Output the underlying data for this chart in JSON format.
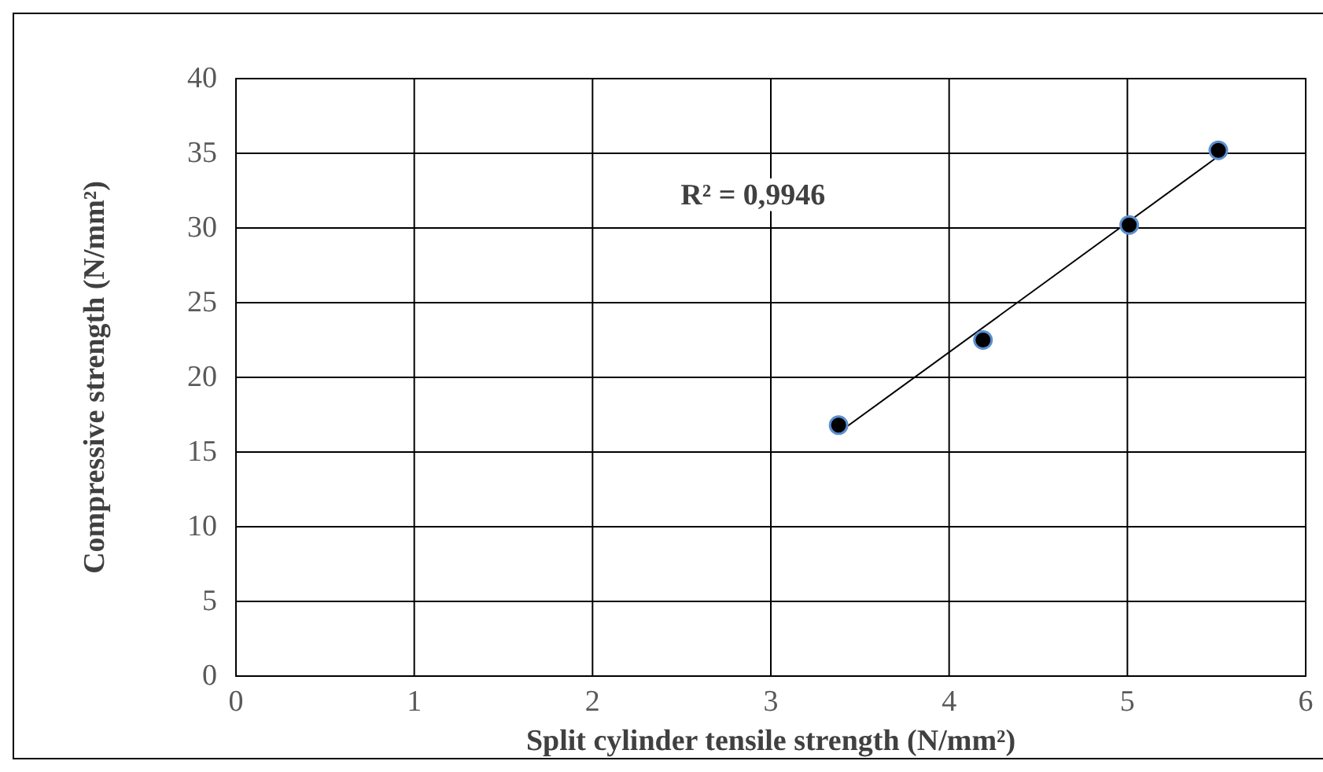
{
  "chart_data": {
    "type": "scatter",
    "xlabel": "Split cylinder tensile strength (N/mm²)",
    "ylabel": "Compressive strength (N/mm²)",
    "annotations": [
      "R² = 0,9946"
    ],
    "xlim": [
      0,
      6
    ],
    "ylim": [
      0,
      40
    ],
    "xticks": [
      0,
      1,
      2,
      3,
      4,
      5,
      6
    ],
    "yticks": [
      0,
      5,
      10,
      15,
      20,
      25,
      30,
      35,
      40
    ],
    "grid": true,
    "marker": "circle",
    "series": [
      {
        "color": "#000000",
        "x": [
          3.38,
          4.19,
          5.01,
          5.51
        ],
        "values": [
          16.8,
          22.5,
          30.2,
          35.2
        ]
      },
      {
        "type": "line",
        "marker": "none",
        "color": "#000000",
        "x": [
          3.38,
          5.51
        ],
        "values": [
          16.3,
          34.8
        ]
      }
    ]
  }
}
